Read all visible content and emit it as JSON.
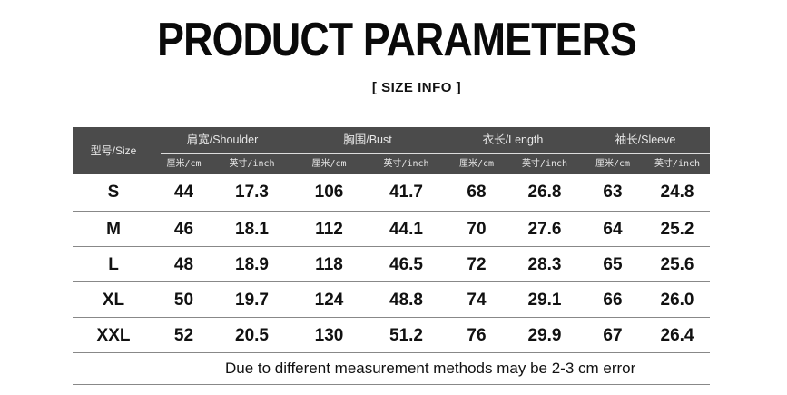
{
  "title": "PRODUCT PARAMETERS",
  "subtitle": "[ SIZE INFO ]",
  "table": {
    "size_header": "型号/Size",
    "groups": [
      "肩宽/Shoulder",
      "胸围/Bust",
      "衣长/Length",
      "袖长/Sleeve"
    ],
    "units": [
      "厘米/cm",
      "英寸/inch",
      "厘米/cm",
      "英寸/inch",
      "厘米/cm",
      "英寸/inch",
      "厘米/cm",
      "英寸/inch"
    ],
    "rows": [
      [
        "S",
        "44",
        "17.3",
        "106",
        "41.7",
        "68",
        "26.8",
        "63",
        "24.8"
      ],
      [
        "M",
        "46",
        "18.1",
        "112",
        "44.1",
        "70",
        "27.6",
        "64",
        "25.2"
      ],
      [
        "L",
        "48",
        "18.9",
        "118",
        "46.5",
        "72",
        "28.3",
        "65",
        "25.6"
      ],
      [
        "XL",
        "50",
        "19.7",
        "124",
        "48.8",
        "74",
        "29.1",
        "66",
        "26.0"
      ],
      [
        "XXL",
        "52",
        "20.5",
        "130",
        "51.2",
        "76",
        "29.9",
        "67",
        "26.4"
      ]
    ],
    "note": "Due to different measurement methods may be 2-3 cm error"
  },
  "colors": {
    "header_bg": "#4b4b4b",
    "header_text": "#e8e8e8"
  }
}
